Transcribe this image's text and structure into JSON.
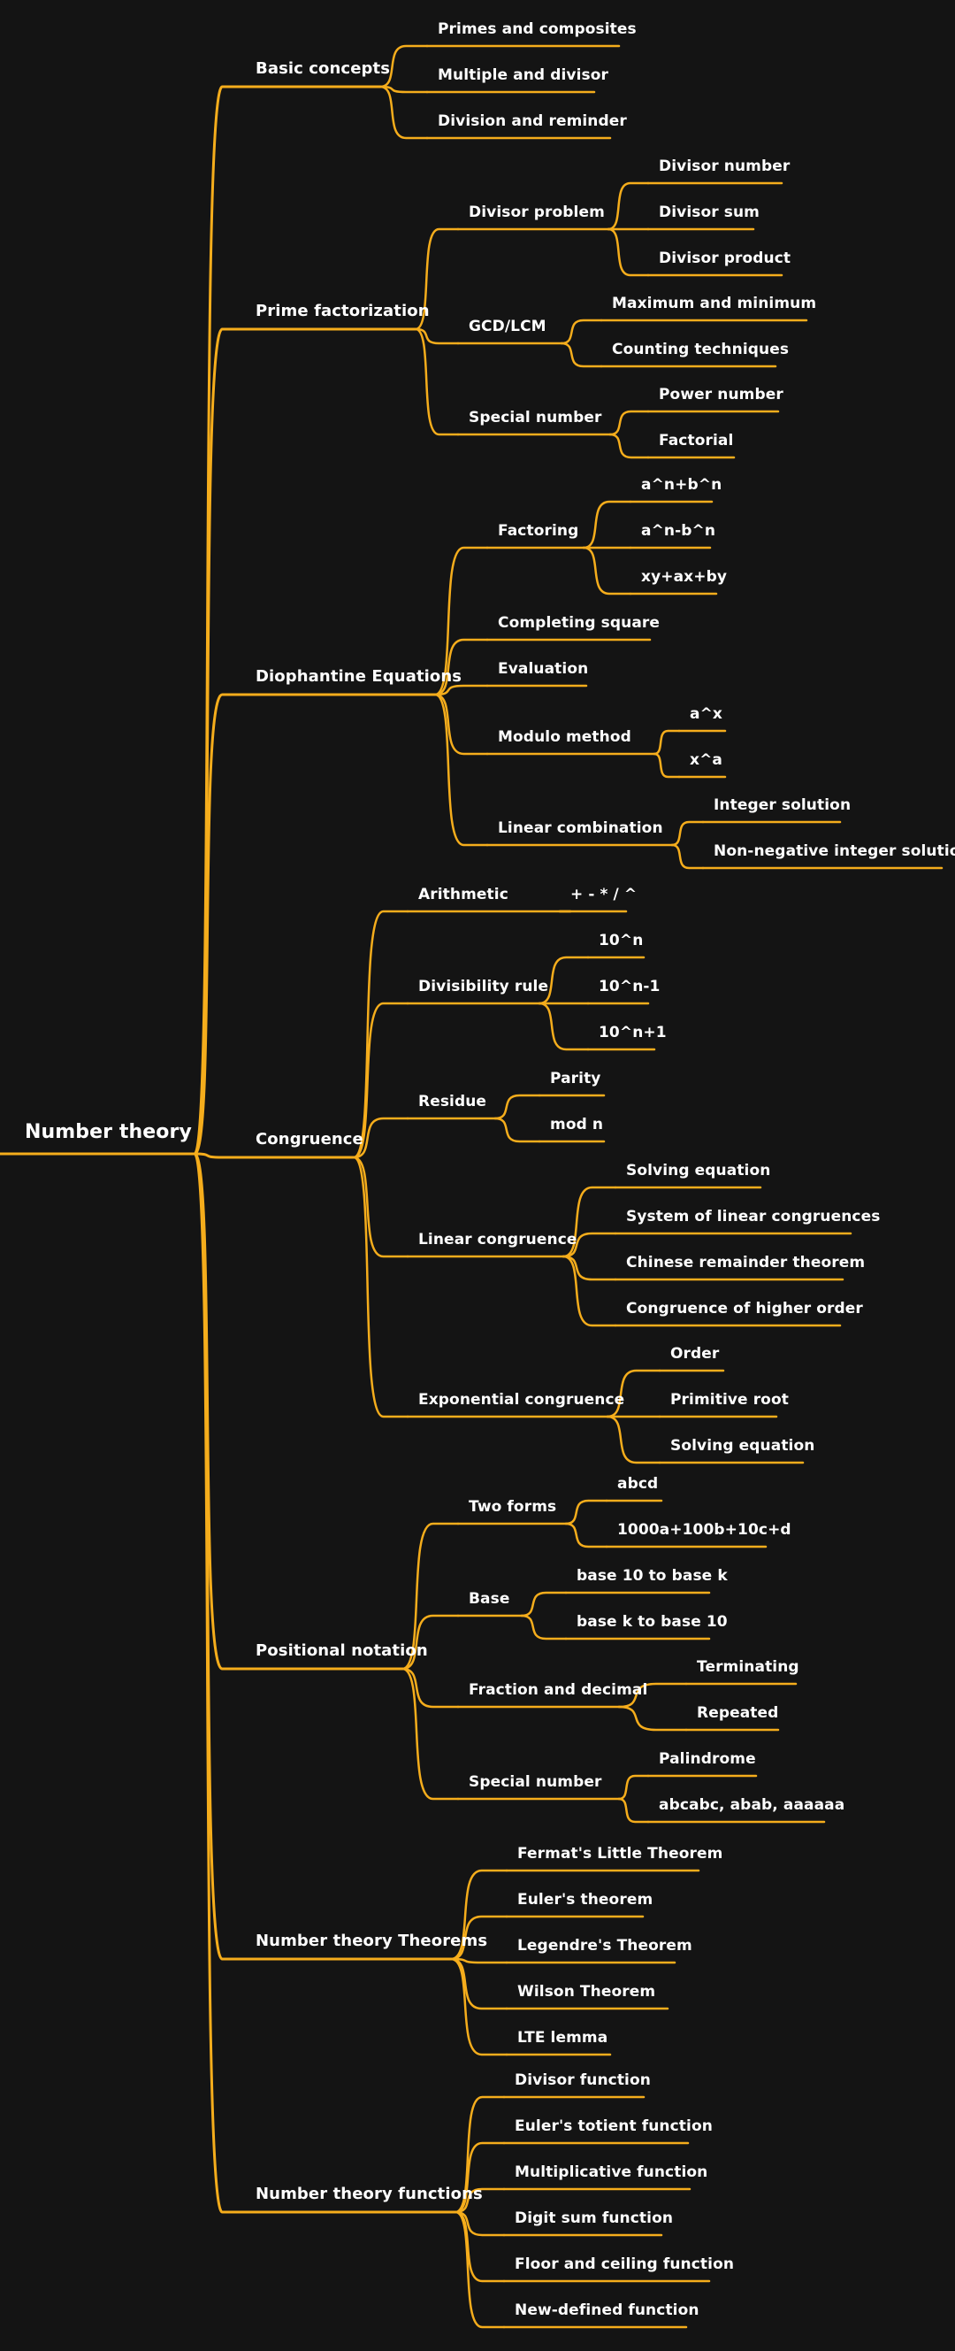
{
  "colors": {
    "background": "#141414",
    "branch": "#f5ad1c",
    "text": "#ffffff"
  },
  "root": {
    "label": "Number theory",
    "children": [
      {
        "label": "Basic concepts",
        "children": [
          {
            "label": "Primes and composites"
          },
          {
            "label": "Multiple and divisor"
          },
          {
            "label": "Division and reminder"
          }
        ]
      },
      {
        "label": "Prime factorization",
        "children": [
          {
            "label": "Divisor problem",
            "children": [
              {
                "label": "Divisor number"
              },
              {
                "label": "Divisor sum"
              },
              {
                "label": "Divisor product"
              }
            ]
          },
          {
            "label": "GCD/LCM",
            "children": [
              {
                "label": "Maximum and minimum"
              },
              {
                "label": "Counting techniques"
              }
            ]
          },
          {
            "label": "Special number",
            "children": [
              {
                "label": "Power number"
              },
              {
                "label": "Factorial"
              }
            ]
          }
        ]
      },
      {
        "label": "Diophantine Equations",
        "children": [
          {
            "label": "Factoring",
            "children": [
              {
                "label": "a^n+b^n"
              },
              {
                "label": "a^n-b^n"
              },
              {
                "label": "xy+ax+by"
              }
            ]
          },
          {
            "label": "Completing square"
          },
          {
            "label": "Evaluation"
          },
          {
            "label": "Modulo method",
            "children": [
              {
                "label": "a^x"
              },
              {
                "label": "x^a"
              }
            ]
          },
          {
            "label": "Linear combination",
            "children": [
              {
                "label": "Integer solution"
              },
              {
                "label": "Non-negative integer solution"
              }
            ]
          }
        ]
      },
      {
        "label": "Congruence",
        "children": [
          {
            "label": "Arithmetic",
            "children": [
              {
                "label": "+ - * / ^"
              }
            ]
          },
          {
            "label": "Divisibility rule",
            "children": [
              {
                "label": "10^n"
              },
              {
                "label": "10^n-1"
              },
              {
                "label": "10^n+1"
              }
            ]
          },
          {
            "label": "Residue",
            "children": [
              {
                "label": "Parity"
              },
              {
                "label": "mod n"
              }
            ]
          },
          {
            "label": "Linear congruence",
            "children": [
              {
                "label": "Solving equation"
              },
              {
                "label": "System of linear congruences"
              },
              {
                "label": "Chinese remainder theorem"
              },
              {
                "label": "Congruence of higher order"
              }
            ]
          },
          {
            "label": "Exponential congruence",
            "children": [
              {
                "label": "Order"
              },
              {
                "label": "Primitive root"
              },
              {
                "label": "Solving equation"
              }
            ]
          }
        ]
      },
      {
        "label": "Positional notation",
        "children": [
          {
            "label": "Two forms",
            "children": [
              {
                "label": "abcd"
              },
              {
                "label": "1000a+100b+10c+d"
              }
            ]
          },
          {
            "label": "Base",
            "children": [
              {
                "label": "base 10 to base k"
              },
              {
                "label": "base k to base 10"
              }
            ]
          },
          {
            "label": "Fraction and decimal",
            "children": [
              {
                "label": "Terminating"
              },
              {
                "label": "Repeated"
              }
            ]
          },
          {
            "label": "Special number",
            "children": [
              {
                "label": "Palindrome"
              },
              {
                "label": "abcabc, abab, aaaaaa"
              }
            ]
          }
        ]
      },
      {
        "label": "Number theory Theorems",
        "children": [
          {
            "label": "Fermat's Little Theorem"
          },
          {
            "label": "Euler's theorem"
          },
          {
            "label": "Legendre's Theorem"
          },
          {
            "label": "Wilson Theorem"
          },
          {
            "label": "LTE lemma"
          }
        ]
      },
      {
        "label": "Number theory functions",
        "children": [
          {
            "label": "Divisor function"
          },
          {
            "label": "Euler's totient function"
          },
          {
            "label": "Multiplicative function"
          },
          {
            "label": "Digit sum function"
          },
          {
            "label": "Floor and ceiling function"
          },
          {
            "label": "New-defined function"
          }
        ]
      }
    ]
  }
}
